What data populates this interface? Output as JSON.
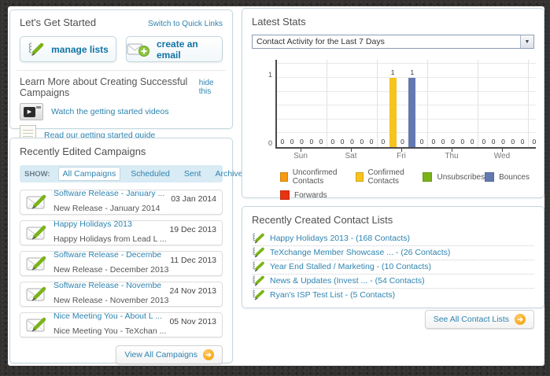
{
  "get_started": {
    "title": "Let's Get Started",
    "switch_link": "Switch to Quick Links",
    "buttons": [
      {
        "label": "manage lists",
        "icon": "notepad-pencil-icon"
      },
      {
        "label": "create an email",
        "icon": "email-plus-icon"
      }
    ],
    "learn_more": {
      "title": "Learn More about Creating Successful Campaigns",
      "hide_link": "hide this",
      "links": [
        {
          "label": "Watch the getting started videos",
          "icon": "video-thumbnail"
        },
        {
          "label": "Read our getting started guide",
          "icon": "guide-thumbnail"
        }
      ]
    }
  },
  "campaigns": {
    "title": "Recently Edited Campaigns",
    "show_label": "SHOW:",
    "filters": [
      "All Campaigns",
      "Scheduled",
      "Sent",
      "Archived"
    ],
    "active_filter": "All Campaigns",
    "items": [
      {
        "title": "Software Release - January ...",
        "subtitle": "New Release - January 2014",
        "date": "03 Jan 2014"
      },
      {
        "title": "Happy Holidays 2013",
        "subtitle": "Happy Holidays from Lead L ...",
        "date": "19 Dec 2013"
      },
      {
        "title": "Software Release - Decembe ...",
        "subtitle": "New Release - December 2013",
        "date": "11 Dec 2013"
      },
      {
        "title": "Software Release - Novembe ...",
        "subtitle": "New Release - November 2013",
        "date": "24 Nov 2013"
      },
      {
        "title": "Nice Meeting You - About L ...",
        "subtitle": "Nice Meeting You - TeXchan ...",
        "date": "05 Nov 2013"
      }
    ],
    "view_all_label": "View All Campaigns"
  },
  "stats": {
    "title": "Latest Stats",
    "dropdown_value": "Contact Activity for the Last 7 Days"
  },
  "chart_data": {
    "type": "bar",
    "categories": [
      "Sun",
      "Sat",
      "Fri",
      "Thu",
      "Wed",
      ""
    ],
    "series": [
      {
        "name": "Unconfirmed Contacts",
        "color": "#F79A0E",
        "values": [
          0,
          0,
          0,
          0,
          0,
          0
        ]
      },
      {
        "name": "Confirmed Contacts",
        "color": "#F7C31E",
        "values": [
          0,
          0,
          1,
          0,
          0,
          0
        ]
      },
      {
        "name": "Unsubscribes",
        "color": "#7AB317",
        "values": [
          0,
          0,
          0,
          0,
          0,
          0
        ]
      },
      {
        "name": "Bounces",
        "color": "#6379B2",
        "values": [
          0,
          0,
          1,
          0,
          0,
          0
        ]
      },
      {
        "name": "Forwards",
        "color": "#E93311",
        "values": [
          0,
          0,
          0,
          0,
          0,
          0
        ]
      }
    ],
    "title": "",
    "xlabel": "",
    "ylabel": "",
    "ylim": [
      0,
      1
    ],
    "yticks": [
      "0",
      "1"
    ],
    "show_value_labels": true,
    "grid": true,
    "legend_position": "bottom",
    "last_group_clipped": true
  },
  "contact_lists": {
    "title": "Recently Created Contact Lists",
    "items": [
      "Happy Holidays 2013 - (168 Contacts)",
      "TeXchange Member Showcase ... - (26 Contacts)",
      "Year End Stalled / Marketing - (10 Contacts)",
      "News & Updates (Invest ... - (54 Contacts)",
      "Ryan's ISP Test List - (5 Contacts)"
    ],
    "see_all_label": "See All Contact Lists"
  }
}
